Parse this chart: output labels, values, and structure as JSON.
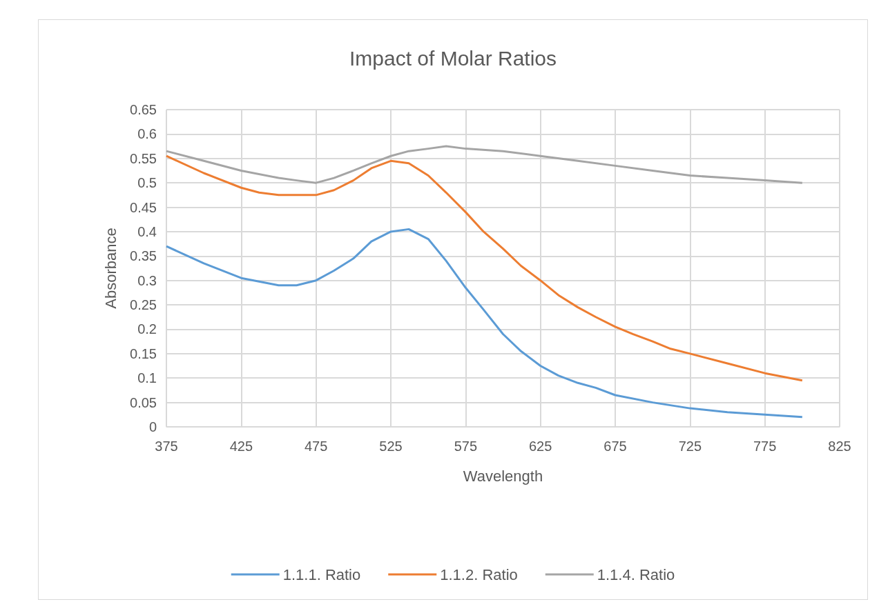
{
  "chart_data": {
    "type": "line",
    "title": "Impact of Molar Ratios",
    "xlabel": "Wavelength",
    "ylabel": "Absorbance",
    "xlim": [
      375,
      825
    ],
    "xticks": [
      375,
      425,
      475,
      525,
      575,
      625,
      675,
      725,
      775,
      825
    ],
    "ylim": [
      0,
      0.65
    ],
    "yticks": [
      0,
      0.05,
      0.1,
      0.15,
      0.2,
      0.25,
      0.3,
      0.35,
      0.4,
      0.45,
      0.5,
      0.55,
      0.6,
      0.65
    ],
    "grid": true,
    "legend": "bottom",
    "marker": "none",
    "line_style": "solid",
    "series": [
      {
        "name": "1.1.1. Ratio",
        "color": "#5b9bd5",
        "x": [
          375,
          400,
          425,
          450,
          462,
          475,
          487,
          500,
          512,
          525,
          537,
          550,
          562,
          575,
          587,
          600,
          612,
          625,
          637,
          650,
          662,
          675,
          700,
          725,
          750,
          775,
          800
        ],
        "values": [
          0.37,
          0.335,
          0.305,
          0.29,
          0.29,
          0.3,
          0.32,
          0.345,
          0.38,
          0.4,
          0.405,
          0.385,
          0.34,
          0.285,
          0.24,
          0.19,
          0.155,
          0.125,
          0.105,
          0.09,
          0.08,
          0.065,
          0.05,
          0.038,
          0.03,
          0.025,
          0.02
        ]
      },
      {
        "name": "1.1.2. Ratio",
        "color": "#ed7d31",
        "x": [
          375,
          400,
          425,
          437,
          450,
          475,
          487,
          500,
          512,
          525,
          537,
          550,
          562,
          575,
          587,
          600,
          612,
          625,
          637,
          650,
          662,
          675,
          687,
          700,
          712,
          725,
          750,
          775,
          800
        ],
        "values": [
          0.555,
          0.52,
          0.49,
          0.48,
          0.475,
          0.475,
          0.485,
          0.505,
          0.53,
          0.545,
          0.54,
          0.515,
          0.48,
          0.44,
          0.4,
          0.365,
          0.33,
          0.3,
          0.27,
          0.245,
          0.225,
          0.205,
          0.19,
          0.175,
          0.16,
          0.15,
          0.13,
          0.11,
          0.095
        ]
      },
      {
        "name": "1.1.4. Ratio",
        "color": "#a5a5a5",
        "x": [
          375,
          400,
          425,
          450,
          462,
          475,
          487,
          500,
          512,
          525,
          537,
          550,
          562,
          575,
          600,
          625,
          650,
          675,
          700,
          725,
          750,
          775,
          800
        ],
        "values": [
          0.565,
          0.545,
          0.525,
          0.51,
          0.505,
          0.5,
          0.51,
          0.525,
          0.54,
          0.555,
          0.565,
          0.57,
          0.575,
          0.57,
          0.565,
          0.555,
          0.545,
          0.535,
          0.525,
          0.515,
          0.51,
          0.505,
          0.5
        ]
      }
    ]
  }
}
